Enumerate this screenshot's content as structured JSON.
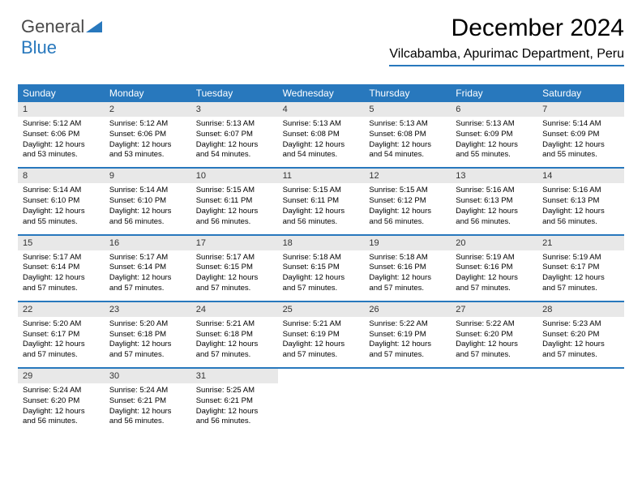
{
  "logo": {
    "word1": "General",
    "word2": "Blue"
  },
  "title": "December 2024",
  "location": "Vilcabamba, Apurimac Department, Peru",
  "colors": {
    "accent": "#2878bd",
    "header_text": "#ffffff",
    "daynum_bg": "#e8e8e8",
    "body_bg": "#ffffff",
    "text": "#000000"
  },
  "days_of_week": [
    "Sunday",
    "Monday",
    "Tuesday",
    "Wednesday",
    "Thursday",
    "Friday",
    "Saturday"
  ],
  "weeks": [
    [
      {
        "n": "1",
        "sr": "5:12 AM",
        "ss": "6:06 PM",
        "dl": "12 hours and 53 minutes."
      },
      {
        "n": "2",
        "sr": "5:12 AM",
        "ss": "6:06 PM",
        "dl": "12 hours and 53 minutes."
      },
      {
        "n": "3",
        "sr": "5:13 AM",
        "ss": "6:07 PM",
        "dl": "12 hours and 54 minutes."
      },
      {
        "n": "4",
        "sr": "5:13 AM",
        "ss": "6:08 PM",
        "dl": "12 hours and 54 minutes."
      },
      {
        "n": "5",
        "sr": "5:13 AM",
        "ss": "6:08 PM",
        "dl": "12 hours and 54 minutes."
      },
      {
        "n": "6",
        "sr": "5:13 AM",
        "ss": "6:09 PM",
        "dl": "12 hours and 55 minutes."
      },
      {
        "n": "7",
        "sr": "5:14 AM",
        "ss": "6:09 PM",
        "dl": "12 hours and 55 minutes."
      }
    ],
    [
      {
        "n": "8",
        "sr": "5:14 AM",
        "ss": "6:10 PM",
        "dl": "12 hours and 55 minutes."
      },
      {
        "n": "9",
        "sr": "5:14 AM",
        "ss": "6:10 PM",
        "dl": "12 hours and 56 minutes."
      },
      {
        "n": "10",
        "sr": "5:15 AM",
        "ss": "6:11 PM",
        "dl": "12 hours and 56 minutes."
      },
      {
        "n": "11",
        "sr": "5:15 AM",
        "ss": "6:11 PM",
        "dl": "12 hours and 56 minutes."
      },
      {
        "n": "12",
        "sr": "5:15 AM",
        "ss": "6:12 PM",
        "dl": "12 hours and 56 minutes."
      },
      {
        "n": "13",
        "sr": "5:16 AM",
        "ss": "6:13 PM",
        "dl": "12 hours and 56 minutes."
      },
      {
        "n": "14",
        "sr": "5:16 AM",
        "ss": "6:13 PM",
        "dl": "12 hours and 56 minutes."
      }
    ],
    [
      {
        "n": "15",
        "sr": "5:17 AM",
        "ss": "6:14 PM",
        "dl": "12 hours and 57 minutes."
      },
      {
        "n": "16",
        "sr": "5:17 AM",
        "ss": "6:14 PM",
        "dl": "12 hours and 57 minutes."
      },
      {
        "n": "17",
        "sr": "5:17 AM",
        "ss": "6:15 PM",
        "dl": "12 hours and 57 minutes."
      },
      {
        "n": "18",
        "sr": "5:18 AM",
        "ss": "6:15 PM",
        "dl": "12 hours and 57 minutes."
      },
      {
        "n": "19",
        "sr": "5:18 AM",
        "ss": "6:16 PM",
        "dl": "12 hours and 57 minutes."
      },
      {
        "n": "20",
        "sr": "5:19 AM",
        "ss": "6:16 PM",
        "dl": "12 hours and 57 minutes."
      },
      {
        "n": "21",
        "sr": "5:19 AM",
        "ss": "6:17 PM",
        "dl": "12 hours and 57 minutes."
      }
    ],
    [
      {
        "n": "22",
        "sr": "5:20 AM",
        "ss": "6:17 PM",
        "dl": "12 hours and 57 minutes."
      },
      {
        "n": "23",
        "sr": "5:20 AM",
        "ss": "6:18 PM",
        "dl": "12 hours and 57 minutes."
      },
      {
        "n": "24",
        "sr": "5:21 AM",
        "ss": "6:18 PM",
        "dl": "12 hours and 57 minutes."
      },
      {
        "n": "25",
        "sr": "5:21 AM",
        "ss": "6:19 PM",
        "dl": "12 hours and 57 minutes."
      },
      {
        "n": "26",
        "sr": "5:22 AM",
        "ss": "6:19 PM",
        "dl": "12 hours and 57 minutes."
      },
      {
        "n": "27",
        "sr": "5:22 AM",
        "ss": "6:20 PM",
        "dl": "12 hours and 57 minutes."
      },
      {
        "n": "28",
        "sr": "5:23 AM",
        "ss": "6:20 PM",
        "dl": "12 hours and 57 minutes."
      }
    ],
    [
      {
        "n": "29",
        "sr": "5:24 AM",
        "ss": "6:20 PM",
        "dl": "12 hours and 56 minutes."
      },
      {
        "n": "30",
        "sr": "5:24 AM",
        "ss": "6:21 PM",
        "dl": "12 hours and 56 minutes."
      },
      {
        "n": "31",
        "sr": "5:25 AM",
        "ss": "6:21 PM",
        "dl": "12 hours and 56 minutes."
      },
      null,
      null,
      null,
      null
    ]
  ],
  "labels": {
    "sunrise": "Sunrise:",
    "sunset": "Sunset:",
    "daylight": "Daylight:"
  }
}
